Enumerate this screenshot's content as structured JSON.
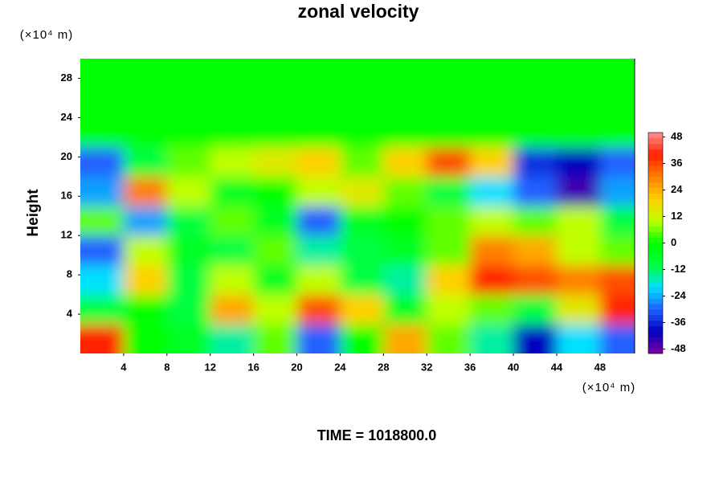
{
  "chart_data": {
    "type": "heatmap",
    "title": "zonal velocity",
    "ylabel": "Height",
    "xunit": "(×10⁴ m)",
    "yunit": "(×10⁴ m)",
    "footer": "TIME = 1018800.0",
    "xlim": [
      0,
      51.2
    ],
    "ylim": [
      0,
      30
    ],
    "xticks": [
      4,
      8,
      12,
      16,
      20,
      24,
      28,
      32,
      36,
      40,
      44,
      48
    ],
    "yticks": [
      4,
      8,
      12,
      16,
      20,
      24,
      28
    ],
    "x": [
      2,
      6,
      10,
      14,
      18,
      22,
      26,
      30,
      34,
      38,
      42,
      46,
      50
    ],
    "y": [
      1.5,
      4.5,
      7.5,
      10.5,
      13.5,
      16.5,
      19.5,
      22.5,
      25.5,
      28.5
    ],
    "z": [
      [
        40,
        0,
        -5,
        -15,
        5,
        -30,
        0,
        25,
        5,
        -15,
        -40,
        -20,
        -30
      ],
      [
        -10,
        0,
        -10,
        25,
        10,
        35,
        20,
        -5,
        10,
        5,
        -10,
        15,
        40
      ],
      [
        -20,
        20,
        -10,
        10,
        -5,
        10,
        -10,
        -15,
        20,
        40,
        35,
        30,
        35
      ],
      [
        -30,
        10,
        -5,
        -10,
        5,
        -15,
        -10,
        -5,
        5,
        30,
        25,
        10,
        5
      ],
      [
        5,
        -25,
        -10,
        5,
        -5,
        -30,
        -5,
        0,
        5,
        10,
        5,
        10,
        -10
      ],
      [
        -25,
        30,
        10,
        -5,
        0,
        10,
        15,
        5,
        -10,
        -20,
        -30,
        -45,
        -25
      ],
      [
        -30,
        -10,
        5,
        10,
        15,
        20,
        5,
        20,
        35,
        20,
        -35,
        -40,
        -30
      ],
      [
        0,
        0,
        0,
        0,
        0,
        0,
        0,
        0,
        0,
        0,
        0,
        0,
        0
      ],
      [
        0,
        0,
        0,
        0,
        0,
        0,
        0,
        0,
        0,
        0,
        0,
        0,
        0
      ],
      [
        0,
        0,
        0,
        0,
        0,
        0,
        0,
        0,
        0,
        0,
        0,
        0,
        0
      ]
    ],
    "clim": [
      -50,
      50
    ],
    "cticks": [
      48,
      36,
      24,
      12,
      0,
      -12,
      -24,
      -36,
      -48
    ],
    "colormap": [
      "#8000a0",
      "#0000c0",
      "#2060ff",
      "#00e0ff",
      "#00ff40",
      "#00ff00",
      "#c0ff00",
      "#ffd000",
      "#ff8000",
      "#ff2000",
      "#ff9090"
    ]
  }
}
